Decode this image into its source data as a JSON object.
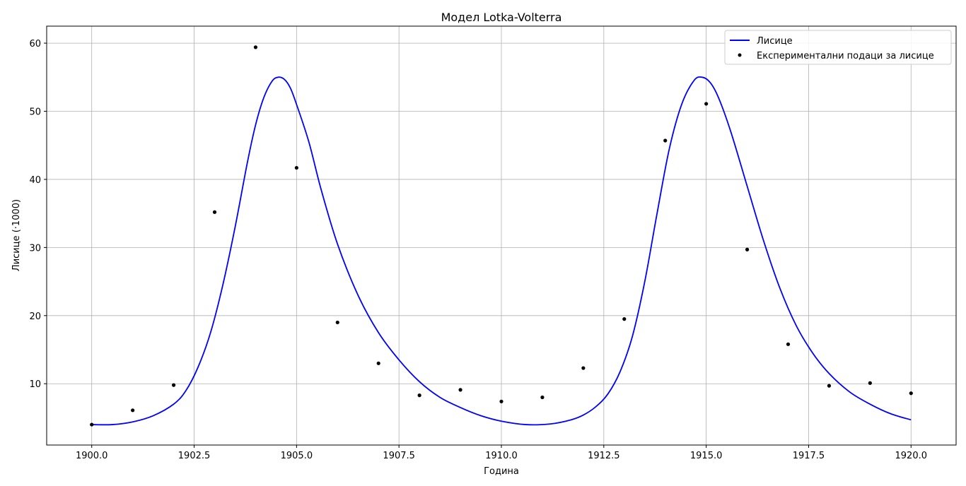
{
  "chart_data": {
    "type": "line",
    "title": "Модел Lotka-Volterra",
    "xlabel": "Година",
    "ylabel": "Лисице (·1000)",
    "xlim": [
      1898.9,
      1921.1
    ],
    "ylim": [
      1.0,
      62.5
    ],
    "xticks": [
      1900.0,
      1902.5,
      1905.0,
      1907.5,
      1910.0,
      1912.5,
      1915.0,
      1917.5,
      1920.0
    ],
    "xtick_labels": [
      "1900.0",
      "1902.5",
      "1905.0",
      "1907.5",
      "1910.0",
      "1912.5",
      "1915.0",
      "1917.5",
      "1920.0"
    ],
    "yticks": [
      10,
      20,
      30,
      40,
      50,
      60
    ],
    "ytick_labels": [
      "10",
      "20",
      "30",
      "40",
      "50",
      "60"
    ],
    "grid": true,
    "legend_position": "top-right",
    "series": [
      {
        "name": "Лисице",
        "kind": "line",
        "color": "#0000ff",
        "x": [
          1900.0,
          1900.5,
          1901.0,
          1901.5,
          1902.0,
          1902.3,
          1902.6,
          1902.9,
          1903.2,
          1903.5,
          1903.8,
          1904.0,
          1904.2,
          1904.4,
          1904.55,
          1904.7,
          1904.85,
          1905.0,
          1905.3,
          1905.6,
          1906.0,
          1906.5,
          1907.0,
          1907.5,
          1908.0,
          1908.5,
          1909.0,
          1909.5,
          1910.0,
          1910.6,
          1911.2,
          1911.7,
          1912.0,
          1912.3,
          1912.6,
          1912.9,
          1913.2,
          1913.5,
          1913.8,
          1914.1,
          1914.4,
          1914.7,
          1914.9,
          1915.1,
          1915.3,
          1915.6,
          1916.0,
          1916.4,
          1916.8,
          1917.2,
          1917.6,
          1918.0,
          1918.5,
          1919.0,
          1919.5,
          1920.0
        ],
        "y": [
          4.0,
          4.0,
          4.4,
          5.3,
          7.0,
          9.0,
          12.5,
          17.5,
          24.5,
          33.0,
          42.5,
          48.0,
          52.0,
          54.4,
          55.0,
          54.7,
          53.4,
          51.0,
          45.5,
          38.5,
          30.5,
          23.0,
          17.5,
          13.5,
          10.3,
          8.0,
          6.5,
          5.3,
          4.5,
          4.0,
          4.1,
          4.7,
          5.4,
          6.6,
          8.5,
          11.8,
          17.0,
          25.0,
          35.0,
          44.5,
          51.0,
          54.5,
          55.0,
          54.2,
          52.0,
          47.0,
          39.0,
          31.0,
          24.0,
          18.5,
          14.5,
          11.5,
          8.8,
          7.0,
          5.6,
          4.7
        ]
      },
      {
        "name": "Експериментални подаци за лисице",
        "kind": "scatter",
        "color": "#000000",
        "x": [
          1900,
          1901,
          1902,
          1903,
          1904,
          1905,
          1906,
          1907,
          1908,
          1909,
          1910,
          1911,
          1912,
          1913,
          1914,
          1915,
          1916,
          1917,
          1918,
          1919,
          1920
        ],
        "y": [
          4.0,
          6.1,
          9.8,
          35.2,
          59.4,
          41.7,
          19.0,
          13.0,
          8.3,
          9.1,
          7.4,
          8.0,
          12.3,
          19.5,
          45.7,
          51.1,
          29.7,
          15.8,
          9.7,
          10.1,
          8.6
        ]
      }
    ]
  }
}
